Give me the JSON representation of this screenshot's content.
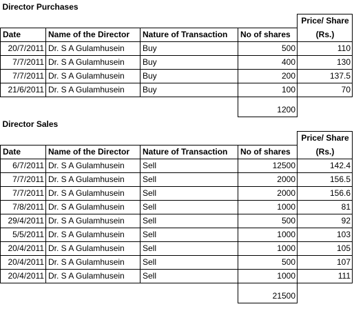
{
  "purchases": {
    "title": "Director Purchases",
    "headers": {
      "date": "Date",
      "name": "Name of the Director",
      "nature": "Nature of Transaction",
      "shares": "No of shares",
      "price_line1": "Price/ Share",
      "price_line2": "(Rs.)"
    },
    "rows": [
      {
        "date": "20/7/2011",
        "name": "Dr. S A Gulamhusein",
        "nature": "Buy",
        "shares": "500",
        "price": "110"
      },
      {
        "date": "7/7/2011",
        "name": "Dr. S A Gulamhusein",
        "nature": "Buy",
        "shares": "400",
        "price": "130"
      },
      {
        "date": "7/7/2011",
        "name": "Dr. S A Gulamhusein",
        "nature": "Buy",
        "shares": "200",
        "price": "137.5"
      },
      {
        "date": "21/6/2011",
        "name": "Dr. S A Gulamhusein",
        "nature": "Buy",
        "shares": "100",
        "price": "70"
      }
    ],
    "total": "1200"
  },
  "sales": {
    "title": "Director Sales",
    "headers": {
      "date": "Date",
      "name": "Name of the Director",
      "nature": "Nature of Transaction",
      "shares": "No of shares",
      "price_line1": "Price/ Share",
      "price_line2": "(Rs.)"
    },
    "rows": [
      {
        "date": "6/7/2011",
        "name": "Dr. S A Gulamhusein",
        "nature": "Sell",
        "shares": "12500",
        "price": "142.4"
      },
      {
        "date": "7/7/2011",
        "name": "Dr. S A Gulamhusein",
        "nature": "Sell",
        "shares": "2000",
        "price": "156.5"
      },
      {
        "date": "7/7/2011",
        "name": "Dr. S A Gulamhusein",
        "nature": "Sell",
        "shares": "2000",
        "price": "156.6"
      },
      {
        "date": "7/8/2011",
        "name": "Dr. S A Gulamhusein",
        "nature": "Sell",
        "shares": "1000",
        "price": "81"
      },
      {
        "date": "29/4/2011",
        "name": "Dr. S A Gulamhusein",
        "nature": "Sell",
        "shares": "500",
        "price": "92"
      },
      {
        "date": "5/5/2011",
        "name": "Dr. S A Gulamhusein",
        "nature": "Sell",
        "shares": "1000",
        "price": "103"
      },
      {
        "date": "20/4/2011",
        "name": "Dr. S A Gulamhusein",
        "nature": "Sell",
        "shares": "1000",
        "price": "105"
      },
      {
        "date": "20/4/2011",
        "name": "Dr. S A Gulamhusein",
        "nature": "Sell",
        "shares": "500",
        "price": "107"
      },
      {
        "date": "20/4/2011",
        "name": "Dr. S A Gulamhusein",
        "nature": "Sell",
        "shares": "1000",
        "price": "111"
      }
    ],
    "total": "21500"
  }
}
